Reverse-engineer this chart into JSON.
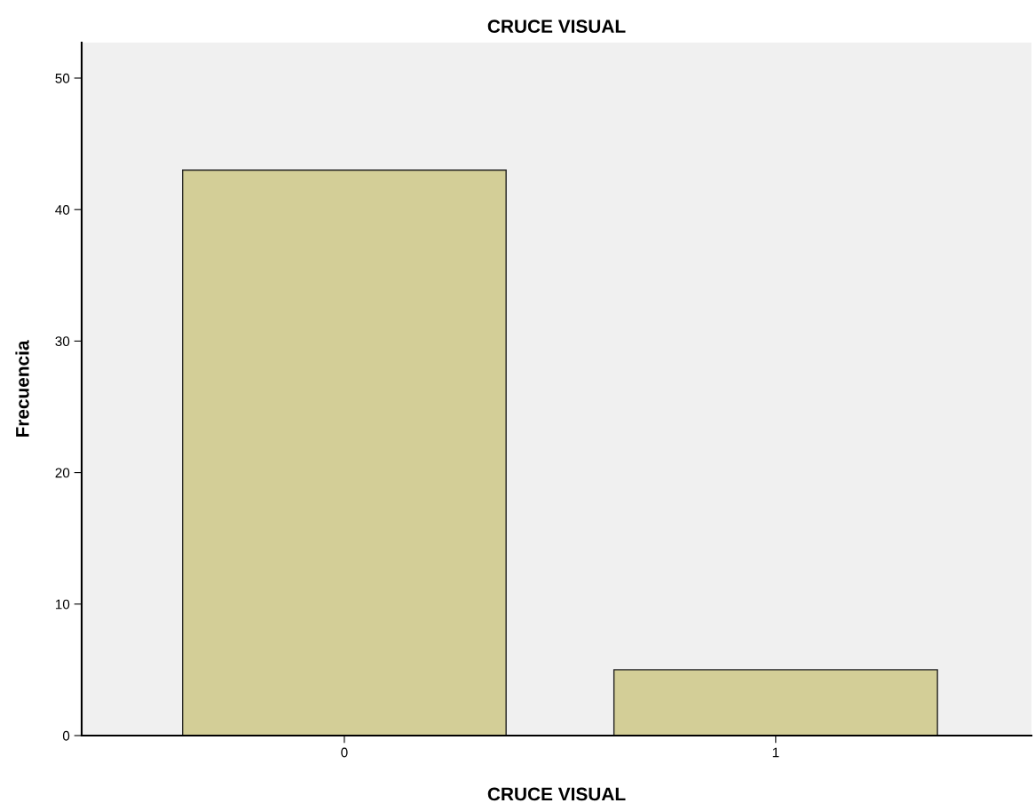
{
  "chart_data": {
    "type": "bar",
    "title": "CRUCE VISUAL",
    "xlabel": "CRUCE VISUAL",
    "ylabel": "Frecuencia",
    "categories": [
      "0",
      "1"
    ],
    "values": [
      43,
      5
    ],
    "color": "#d3ce97",
    "ylim": [
      0,
      52.7
    ],
    "yticks": [
      0,
      10,
      20,
      30,
      40,
      50
    ],
    "grid": false,
    "legend": false
  }
}
